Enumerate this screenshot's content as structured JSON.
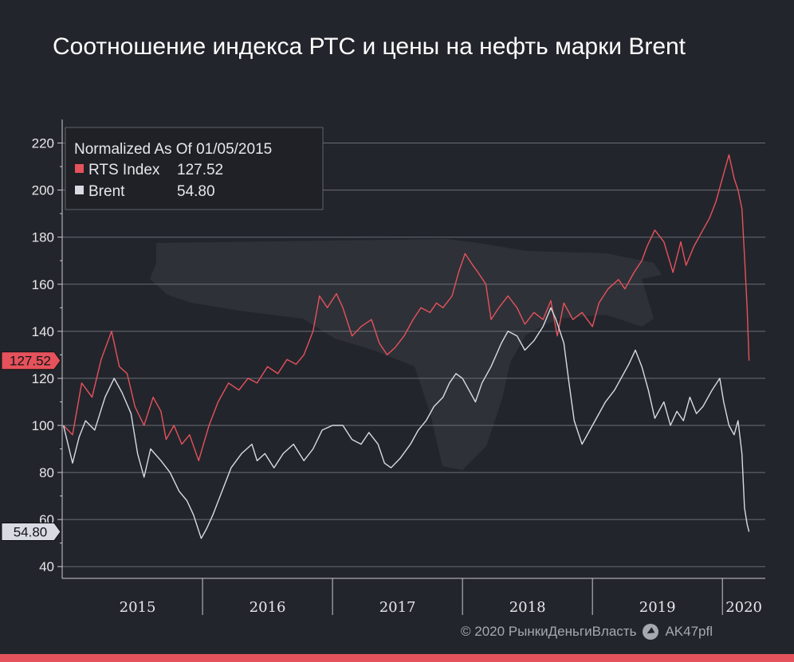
{
  "title": "Соотношение индекса РТС и цены на нефть марки Brent",
  "footer": {
    "copyright": "© 2020 РынкиДеньгиВласть",
    "channel": "AK47pfl",
    "icon": "telegram-icon"
  },
  "colors": {
    "background": "#23252c",
    "rts": "#e5525b",
    "brent": "#d8dbe2",
    "grid": "#6a6d74",
    "accent_bar": "#e5525b"
  },
  "chart_data": {
    "type": "line",
    "title": "Соотношение индекса РТС и цены на нефть марки Brent",
    "legend": {
      "header": "Normalized As Of 01/05/2015",
      "placement": "top-left"
    },
    "x_ticks": [
      "2015",
      "2016",
      "2017",
      "2018",
      "2019",
      "2020"
    ],
    "y_ticks": [
      40,
      60,
      80,
      100,
      120,
      140,
      160,
      180,
      200,
      220
    ],
    "ylim": [
      35,
      230
    ],
    "xlim": [
      2014.92,
      2020.33
    ],
    "grid": true,
    "series": [
      {
        "name": "RTS Index",
        "last_value": "127.52",
        "color": "#e5525b",
        "points": [
          [
            2014.93,
            100
          ],
          [
            2015.0,
            96
          ],
          [
            2015.07,
            118
          ],
          [
            2015.15,
            112
          ],
          [
            2015.22,
            128
          ],
          [
            2015.3,
            140
          ],
          [
            2015.36,
            125
          ],
          [
            2015.42,
            122
          ],
          [
            2015.48,
            108
          ],
          [
            2015.55,
            100
          ],
          [
            2015.62,
            112
          ],
          [
            2015.68,
            106
          ],
          [
            2015.72,
            94
          ],
          [
            2015.78,
            100
          ],
          [
            2015.84,
            92
          ],
          [
            2015.9,
            96
          ],
          [
            2015.97,
            85
          ],
          [
            2016.05,
            100
          ],
          [
            2016.12,
            110
          ],
          [
            2016.2,
            118
          ],
          [
            2016.28,
            115
          ],
          [
            2016.35,
            120
          ],
          [
            2016.42,
            118
          ],
          [
            2016.5,
            125
          ],
          [
            2016.58,
            122
          ],
          [
            2016.65,
            128
          ],
          [
            2016.72,
            126
          ],
          [
            2016.78,
            130
          ],
          [
            2016.85,
            140
          ],
          [
            2016.9,
            155
          ],
          [
            2016.96,
            150
          ],
          [
            2017.03,
            156
          ],
          [
            2017.08,
            150
          ],
          [
            2017.15,
            138
          ],
          [
            2017.22,
            142
          ],
          [
            2017.3,
            145
          ],
          [
            2017.36,
            135
          ],
          [
            2017.42,
            130
          ],
          [
            2017.48,
            133
          ],
          [
            2017.55,
            138
          ],
          [
            2017.62,
            145
          ],
          [
            2017.68,
            150
          ],
          [
            2017.75,
            148
          ],
          [
            2017.8,
            152
          ],
          [
            2017.85,
            150
          ],
          [
            2017.92,
            155
          ],
          [
            2017.97,
            165
          ],
          [
            2018.02,
            173
          ],
          [
            2018.08,
            168
          ],
          [
            2018.12,
            165
          ],
          [
            2018.18,
            160
          ],
          [
            2018.22,
            145
          ],
          [
            2018.28,
            150
          ],
          [
            2018.35,
            155
          ],
          [
            2018.42,
            150
          ],
          [
            2018.48,
            143
          ],
          [
            2018.55,
            148
          ],
          [
            2018.62,
            145
          ],
          [
            2018.68,
            153
          ],
          [
            2018.73,
            138
          ],
          [
            2018.78,
            152
          ],
          [
            2018.85,
            145
          ],
          [
            2018.92,
            148
          ],
          [
            2019.0,
            142
          ],
          [
            2019.05,
            152
          ],
          [
            2019.12,
            158
          ],
          [
            2019.2,
            162
          ],
          [
            2019.25,
            158
          ],
          [
            2019.32,
            165
          ],
          [
            2019.38,
            170
          ],
          [
            2019.42,
            176
          ],
          [
            2019.48,
            183
          ],
          [
            2019.55,
            178
          ],
          [
            2019.62,
            165
          ],
          [
            2019.68,
            178
          ],
          [
            2019.72,
            168
          ],
          [
            2019.78,
            176
          ],
          [
            2019.85,
            183
          ],
          [
            2019.9,
            188
          ],
          [
            2019.95,
            195
          ],
          [
            2020.0,
            205
          ],
          [
            2020.05,
            215
          ],
          [
            2020.09,
            205
          ],
          [
            2020.12,
            200
          ],
          [
            2020.15,
            192
          ],
          [
            2020.17,
            172
          ],
          [
            2020.19,
            150
          ],
          [
            2020.205,
            127.52
          ]
        ]
      },
      {
        "name": "Brent",
        "last_value": "54.80",
        "color": "#d8dbe2",
        "points": [
          [
            2014.93,
            100
          ],
          [
            2015.0,
            84
          ],
          [
            2015.05,
            95
          ],
          [
            2015.1,
            102
          ],
          [
            2015.17,
            98
          ],
          [
            2015.25,
            112
          ],
          [
            2015.32,
            120
          ],
          [
            2015.38,
            114
          ],
          [
            2015.45,
            105
          ],
          [
            2015.5,
            88
          ],
          [
            2015.55,
            78
          ],
          [
            2015.6,
            90
          ],
          [
            2015.68,
            85
          ],
          [
            2015.75,
            80
          ],
          [
            2015.82,
            72
          ],
          [
            2015.88,
            68
          ],
          [
            2015.93,
            62
          ],
          [
            2015.99,
            52
          ],
          [
            2016.03,
            56
          ],
          [
            2016.08,
            62
          ],
          [
            2016.15,
            72
          ],
          [
            2016.22,
            82
          ],
          [
            2016.3,
            88
          ],
          [
            2016.38,
            92
          ],
          [
            2016.42,
            85
          ],
          [
            2016.48,
            88
          ],
          [
            2016.55,
            82
          ],
          [
            2016.62,
            88
          ],
          [
            2016.7,
            92
          ],
          [
            2016.78,
            85
          ],
          [
            2016.85,
            90
          ],
          [
            2016.92,
            98
          ],
          [
            2017.0,
            100
          ],
          [
            2017.08,
            100
          ],
          [
            2017.15,
            94
          ],
          [
            2017.22,
            92
          ],
          [
            2017.28,
            97
          ],
          [
            2017.35,
            92
          ],
          [
            2017.4,
            84
          ],
          [
            2017.45,
            82
          ],
          [
            2017.52,
            86
          ],
          [
            2017.6,
            92
          ],
          [
            2017.66,
            98
          ],
          [
            2017.72,
            102
          ],
          [
            2017.78,
            108
          ],
          [
            2017.85,
            112
          ],
          [
            2017.9,
            118
          ],
          [
            2017.95,
            122
          ],
          [
            2018.0,
            120
          ],
          [
            2018.05,
            115
          ],
          [
            2018.1,
            110
          ],
          [
            2018.15,
            118
          ],
          [
            2018.22,
            125
          ],
          [
            2018.3,
            135
          ],
          [
            2018.35,
            140
          ],
          [
            2018.42,
            138
          ],
          [
            2018.48,
            132
          ],
          [
            2018.55,
            136
          ],
          [
            2018.62,
            142
          ],
          [
            2018.68,
            150
          ],
          [
            2018.72,
            145
          ],
          [
            2018.78,
            135
          ],
          [
            2018.82,
            118
          ],
          [
            2018.86,
            102
          ],
          [
            2018.92,
            92
          ],
          [
            2018.97,
            97
          ],
          [
            2019.03,
            103
          ],
          [
            2019.1,
            110
          ],
          [
            2019.17,
            115
          ],
          [
            2019.22,
            120
          ],
          [
            2019.28,
            126
          ],
          [
            2019.33,
            132
          ],
          [
            2019.38,
            125
          ],
          [
            2019.43,
            115
          ],
          [
            2019.48,
            103
          ],
          [
            2019.55,
            110
          ],
          [
            2019.6,
            100
          ],
          [
            2019.65,
            106
          ],
          [
            2019.7,
            102
          ],
          [
            2019.75,
            112
          ],
          [
            2019.8,
            105
          ],
          [
            2019.85,
            108
          ],
          [
            2019.92,
            115
          ],
          [
            2019.98,
            120
          ],
          [
            2020.01,
            110
          ],
          [
            2020.05,
            100
          ],
          [
            2020.09,
            96
          ],
          [
            2020.12,
            102
          ],
          [
            2020.15,
            88
          ],
          [
            2020.17,
            65
          ],
          [
            2020.19,
            58
          ],
          [
            2020.205,
            54.8
          ]
        ]
      }
    ]
  }
}
